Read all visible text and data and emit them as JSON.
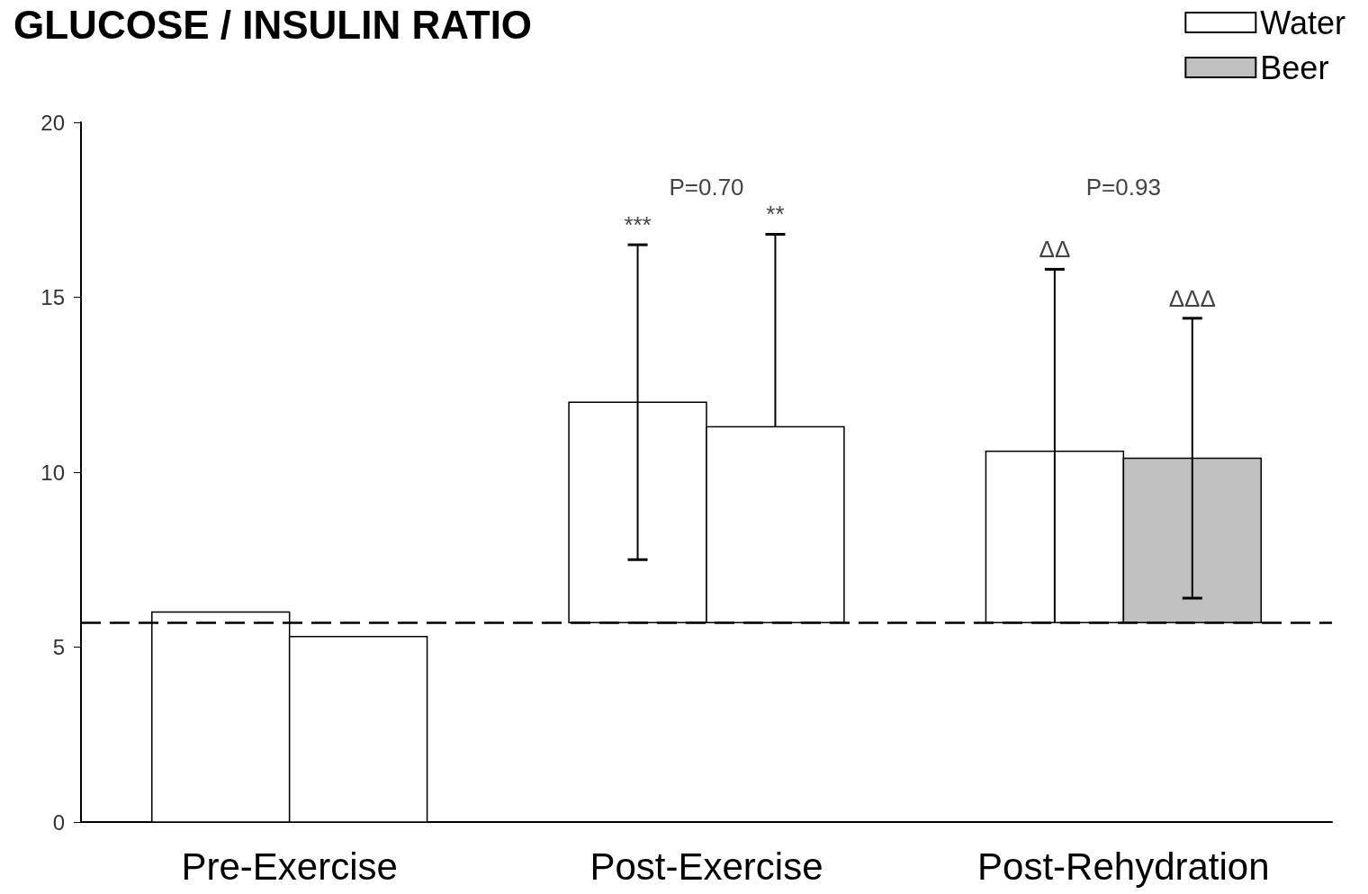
{
  "chart_data": {
    "type": "bar",
    "title": "GLUCOSE / INSULIN RATIO",
    "categories": [
      "Pre-Exercise",
      "Post-Exercise",
      "Post-Rehydration"
    ],
    "series": [
      {
        "name": "Water",
        "color": "#ffffff",
        "values": [
          6.0,
          6.3,
          4.9
        ],
        "base": [
          0,
          5.7,
          5.7
        ],
        "errors": [
          null,
          4.5,
          [
            5.7,
            15.8
          ]
        ]
      },
      {
        "name": "Beer",
        "color": "#c0c0c0",
        "colors": [
          "#ffffff",
          "#ffffff",
          "#c0c0c0"
        ],
        "values": [
          5.3,
          5.6,
          4.7
        ],
        "base": [
          0,
          5.7,
          5.7
        ],
        "errors": [
          null,
          [
            11.3,
            16.8
          ],
          4.0
        ]
      }
    ],
    "ylim": [
      0,
      20
    ],
    "yticks": [
      0,
      5,
      10,
      15,
      20
    ],
    "grid": false,
    "legend": "top right",
    "ref_lines": [
      {
        "axis": "y",
        "value": 5.7,
        "line_style": "dashed",
        "color": "#000000"
      }
    ],
    "annotations": [
      "P=0.70",
      "***",
      "**",
      "P=0.93",
      "ΔΔ",
      "ΔΔΔ"
    ]
  }
}
